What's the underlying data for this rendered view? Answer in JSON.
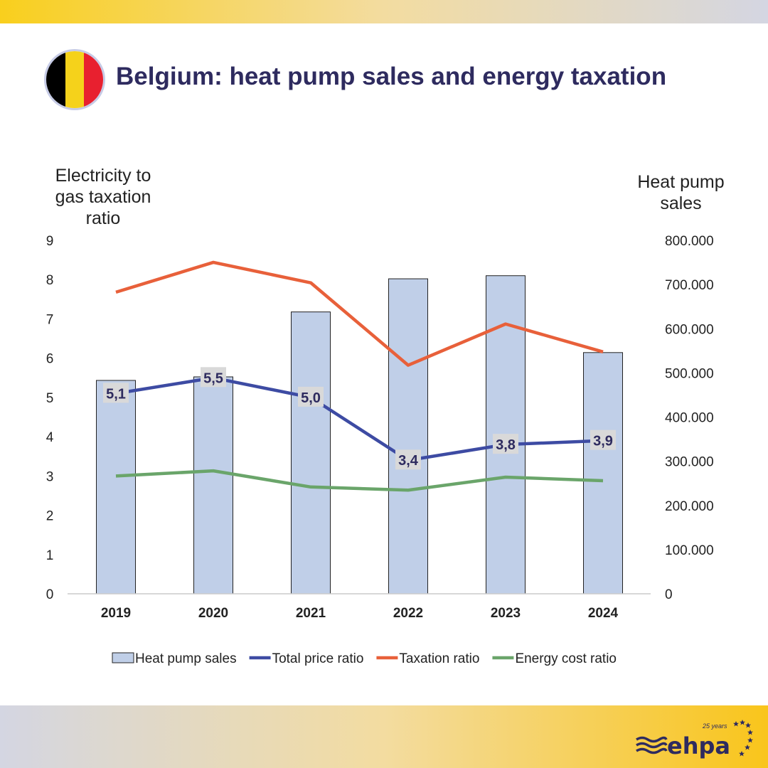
{
  "header": {
    "title": "Belgium: heat pump sales and energy taxation",
    "flag_colors": [
      "#000000",
      "#f5d21b",
      "#e8202f"
    ]
  },
  "logo": {
    "text": "ehpa",
    "tagline": "25 years",
    "color": "#2e2b5f"
  },
  "chart_data": {
    "type": "bar+line",
    "categories": [
      "2019",
      "2020",
      "2021",
      "2022",
      "2023",
      "2024"
    ],
    "left_axis": {
      "title": "Electricity to gas taxation ratio",
      "range": [
        0,
        9
      ],
      "ticks": [
        "0",
        "1",
        "2",
        "3",
        "4",
        "5",
        "6",
        "7",
        "8",
        "9"
      ]
    },
    "right_axis": {
      "title": "Heat pump sales",
      "range": [
        0,
        800000
      ],
      "ticks": [
        "0",
        "100.000",
        "200.000",
        "300.000",
        "400.000",
        "500.000",
        "600.000",
        "700.000",
        "800.000"
      ]
    },
    "series": [
      {
        "name": "Heat pump sales",
        "type": "bar",
        "axis": "right",
        "color": "#c0cfe8",
        "values": [
          483000,
          491000,
          638000,
          713000,
          720000,
          546000
        ]
      },
      {
        "name": "Total price ratio",
        "type": "line",
        "axis": "left",
        "color": "#3d4ba3",
        "values": [
          5.1,
          5.5,
          5.0,
          3.4,
          3.8,
          3.9
        ],
        "labels": [
          "5,1",
          "5,5",
          "5,0",
          "3,4",
          "3,8",
          "3,9"
        ]
      },
      {
        "name": "Taxation ratio",
        "type": "line",
        "axis": "left",
        "color": "#e8603a",
        "values": [
          7.68,
          8.44,
          7.92,
          5.82,
          6.87,
          6.16
        ]
      },
      {
        "name": "Energy cost ratio",
        "type": "line",
        "axis": "left",
        "color": "#6aa56a",
        "values": [
          3.0,
          3.13,
          2.72,
          2.64,
          2.97,
          2.88
        ]
      }
    ],
    "legend": "bottom",
    "grid": false
  }
}
